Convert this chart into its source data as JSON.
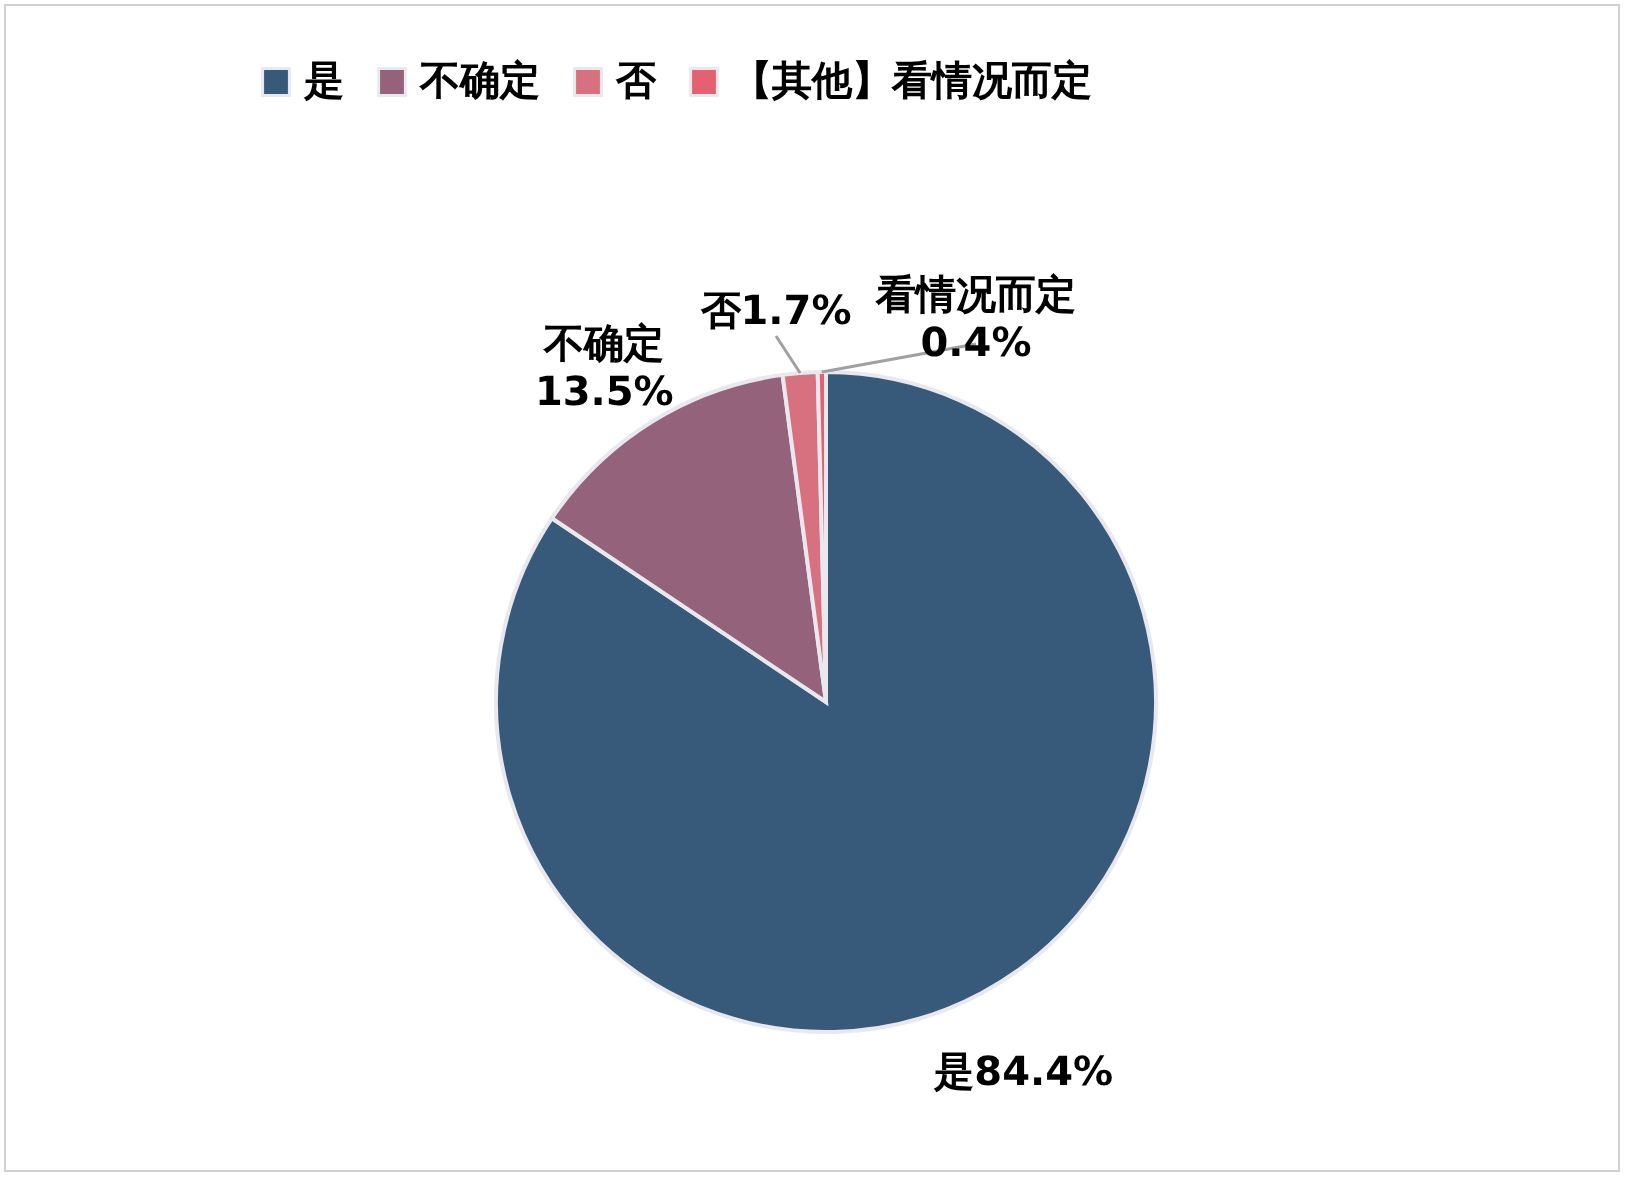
{
  "chart_data": {
    "type": "pie",
    "categories": [
      "是",
      "不确定",
      "否",
      "【其他】看情况而定"
    ],
    "values": [
      84.4,
      13.5,
      1.7,
      0.4
    ],
    "colors": [
      "#375a7a",
      "#95627c",
      "#d7707f",
      "#e5616f"
    ],
    "value_labels": [
      "是84.4%",
      "不确定\n13.5%",
      "否1.7%",
      "看情况而定\n0.4%"
    ],
    "legend": "top"
  }
}
